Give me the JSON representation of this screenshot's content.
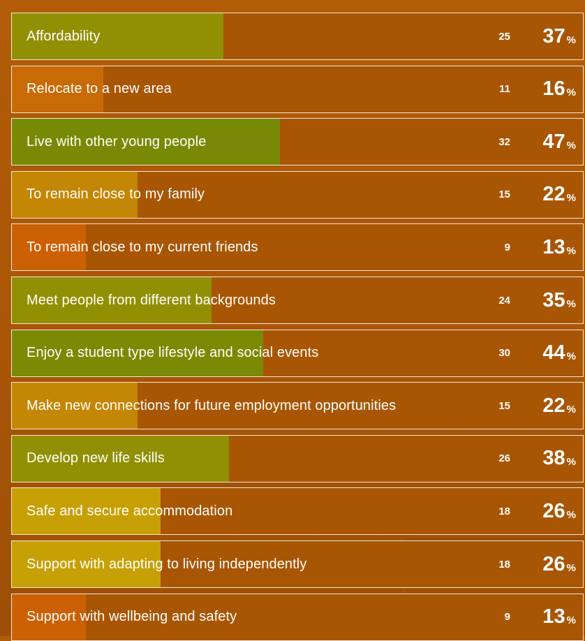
{
  "chart_data": {
    "type": "bar",
    "categories": [
      "Affordability",
      "Relocate to a new area",
      "Live with other young people",
      "To remain close to my family",
      "To remain close to my current friends",
      "Meet people from different backgrounds",
      "Enjoy a student type lifestyle and social events",
      "Make new connections for future employment opportunities",
      "Develop new life skills",
      "Safe and secure accommodation",
      "Support with adapting to living independently",
      "Support with wellbeing and safety"
    ],
    "counts": [
      25,
      11,
      32,
      15,
      9,
      24,
      30,
      15,
      26,
      18,
      18,
      9
    ],
    "percentages": [
      37,
      16,
      47,
      22,
      13,
      35,
      44,
      22,
      38,
      26,
      26,
      13
    ],
    "value_unit": "%",
    "ylim": [
      0,
      100
    ],
    "bar_colors": [
      "#919005",
      "#c86a05",
      "#788a05",
      "#c48605",
      "#cc6005",
      "#919005",
      "#7a8a05",
      "#c48605",
      "#919005",
      "#c7a005",
      "#c7a005",
      "#cc6005"
    ],
    "track_color": "#a85604",
    "title": "",
    "xlabel": "",
    "ylabel": ""
  }
}
